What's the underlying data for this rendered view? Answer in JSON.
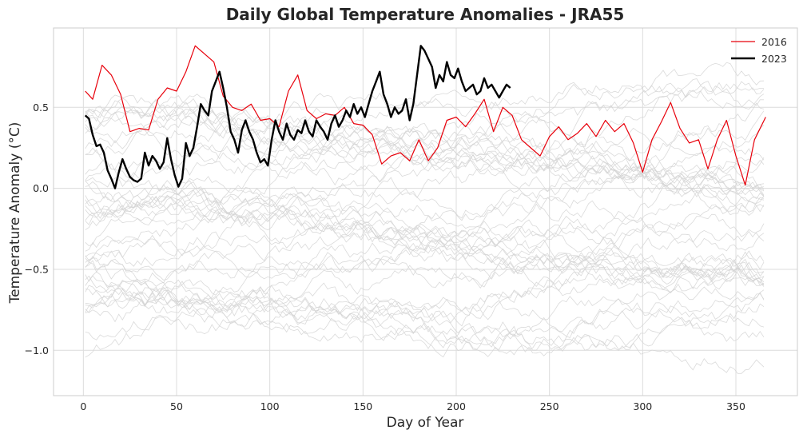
{
  "chart_data": {
    "type": "line",
    "title": "Daily Global Temperature Anomalies - JRA55",
    "xlabel": "Day of Year",
    "ylabel": "Temperature Anomaly (°C)",
    "xlim": [
      -16,
      383
    ],
    "ylim": [
      -1.28,
      0.99
    ],
    "xticks": [
      0,
      50,
      100,
      150,
      200,
      250,
      300,
      350
    ],
    "xtick_labels": [
      "0",
      "50",
      "100",
      "150",
      "200",
      "250",
      "300",
      "350"
    ],
    "yticks": [
      -1.0,
      -0.5,
      0.0,
      0.5
    ],
    "ytick_labels": [
      "−1.0",
      "−0.5",
      "0.0",
      "0.5"
    ],
    "grid": true,
    "legend": {
      "location": "top-right",
      "entries": [
        "2016",
        "2023"
      ]
    },
    "background_years": {
      "count": 44,
      "color": "#d3d3d3",
      "x_range": [
        1,
        366
      ],
      "anomaly_range": [
        -1.15,
        0.88
      ]
    },
    "series": [
      {
        "name": "2016",
        "color": "#e8000b",
        "x": [
          1,
          5,
          10,
          15,
          20,
          25,
          30,
          35,
          40,
          45,
          50,
          55,
          60,
          65,
          70,
          75,
          80,
          85,
          90,
          95,
          100,
          105,
          110,
          115,
          120,
          125,
          130,
          135,
          140,
          145,
          150,
          155,
          160,
          165,
          170,
          175,
          180,
          185,
          190,
          195,
          200,
          205,
          210,
          215,
          220,
          225,
          230,
          235,
          240,
          245,
          250,
          255,
          260,
          265,
          270,
          275,
          280,
          285,
          290,
          295,
          300,
          305,
          310,
          315,
          320,
          325,
          330,
          335,
          340,
          345,
          350,
          355,
          360,
          366
        ],
        "y": [
          0.6,
          0.55,
          0.76,
          0.7,
          0.58,
          0.35,
          0.37,
          0.36,
          0.55,
          0.62,
          0.6,
          0.72,
          0.88,
          0.83,
          0.78,
          0.57,
          0.5,
          0.48,
          0.52,
          0.42,
          0.43,
          0.38,
          0.6,
          0.7,
          0.48,
          0.43,
          0.46,
          0.45,
          0.5,
          0.4,
          0.39,
          0.33,
          0.15,
          0.2,
          0.22,
          0.17,
          0.3,
          0.17,
          0.25,
          0.42,
          0.44,
          0.38,
          0.46,
          0.55,
          0.35,
          0.5,
          0.45,
          0.3,
          0.25,
          0.2,
          0.32,
          0.38,
          0.3,
          0.34,
          0.4,
          0.32,
          0.42,
          0.35,
          0.4,
          0.28,
          0.1,
          0.3,
          0.41,
          0.53,
          0.37,
          0.28,
          0.3,
          0.12,
          0.3,
          0.42,
          0.2,
          0.02,
          0.3,
          0.44
        ]
      },
      {
        "name": "2023",
        "color": "#000000",
        "x": [
          1,
          3,
          5,
          7,
          9,
          11,
          13,
          15,
          17,
          19,
          21,
          23,
          25,
          27,
          29,
          31,
          33,
          35,
          37,
          39,
          41,
          43,
          45,
          47,
          49,
          51,
          53,
          55,
          57,
          59,
          61,
          63,
          65,
          67,
          69,
          71,
          73,
          75,
          77,
          79,
          81,
          83,
          85,
          87,
          89,
          91,
          93,
          95,
          97,
          99,
          101,
          103,
          105,
          107,
          109,
          111,
          113,
          115,
          117,
          119,
          121,
          123,
          125,
          127,
          129,
          131,
          133,
          135,
          137,
          139,
          141,
          143,
          145,
          147,
          149,
          151,
          153,
          155,
          157,
          159,
          161,
          163,
          165,
          167,
          169,
          171,
          173,
          175,
          177,
          179,
          181,
          183,
          185,
          187,
          189,
          191,
          193,
          195,
          197,
          199,
          201,
          203,
          205,
          207,
          209,
          211,
          213,
          215,
          217,
          219,
          221,
          223,
          225,
          227,
          229
        ],
        "y": [
          0.45,
          0.43,
          0.33,
          0.26,
          0.27,
          0.22,
          0.11,
          0.06,
          0.0,
          0.1,
          0.18,
          0.12,
          0.07,
          0.05,
          0.04,
          0.06,
          0.22,
          0.14,
          0.2,
          0.17,
          0.12,
          0.16,
          0.31,
          0.18,
          0.08,
          0.01,
          0.06,
          0.28,
          0.2,
          0.25,
          0.38,
          0.52,
          0.48,
          0.45,
          0.6,
          0.66,
          0.72,
          0.62,
          0.5,
          0.35,
          0.3,
          0.22,
          0.36,
          0.42,
          0.35,
          0.3,
          0.22,
          0.16,
          0.18,
          0.14,
          0.3,
          0.42,
          0.35,
          0.3,
          0.4,
          0.33,
          0.3,
          0.36,
          0.34,
          0.42,
          0.35,
          0.32,
          0.42,
          0.38,
          0.35,
          0.3,
          0.4,
          0.45,
          0.38,
          0.42,
          0.48,
          0.44,
          0.52,
          0.46,
          0.5,
          0.44,
          0.52,
          0.6,
          0.66,
          0.72,
          0.58,
          0.52,
          0.44,
          0.5,
          0.46,
          0.48,
          0.55,
          0.42,
          0.52,
          0.7,
          0.88,
          0.85,
          0.8,
          0.75,
          0.62,
          0.7,
          0.66,
          0.78,
          0.7,
          0.68,
          0.74,
          0.66,
          0.6,
          0.62,
          0.64,
          0.58,
          0.6,
          0.68,
          0.62,
          0.64,
          0.6,
          0.56,
          0.6,
          0.64,
          0.62
        ]
      }
    ]
  }
}
